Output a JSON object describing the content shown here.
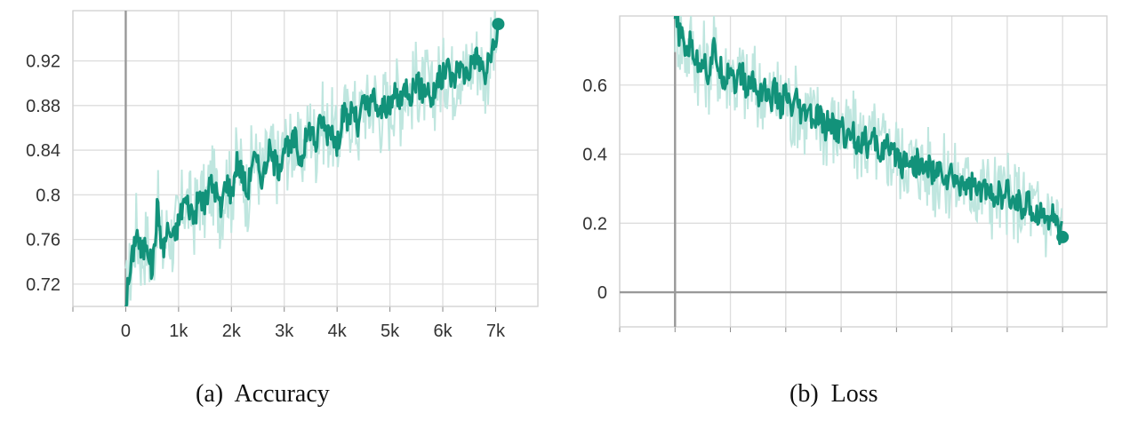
{
  "chart_data": [
    {
      "type": "line",
      "caption": "(a)  Accuracy",
      "xlim": [
        -1000,
        7800
      ],
      "ylim": [
        0.7,
        0.965
      ],
      "xticks": [
        0,
        1000,
        2000,
        3000,
        4000,
        5000,
        6000,
        7000
      ],
      "xtick_labels": [
        "0",
        "1k",
        "2k",
        "3k",
        "4k",
        "5k",
        "6k",
        "7k"
      ],
      "yticks": [
        0.72,
        0.76,
        0.8,
        0.84,
        0.88,
        0.92
      ],
      "ytick_labels": [
        "0.72",
        "0.76",
        "0.8",
        "0.84",
        "0.88",
        "0.92"
      ],
      "grid": true,
      "colors": {
        "smoothed": "#12927a",
        "raw": "#bfe6df",
        "axis": "#999999",
        "grid": "#dddddd"
      },
      "series": [
        {
          "x": [
            0,
            100,
            200,
            300,
            400,
            500,
            600,
            700,
            800,
            900,
            1000,
            1100,
            1200,
            1300,
            1400,
            1500,
            1600,
            1700,
            1800,
            1900,
            2000,
            2100,
            2200,
            2300,
            2400,
            2500,
            2600,
            2700,
            2800,
            2900,
            3000,
            3100,
            3200,
            3300,
            3400,
            3500,
            3600,
            3700,
            3800,
            3900,
            4000,
            4100,
            4200,
            4300,
            4400,
            4500,
            4600,
            4700,
            4800,
            4900,
            5000,
            5100,
            5200,
            5300,
            5400,
            5500,
            5600,
            5700,
            5800,
            5900,
            6000,
            6100,
            6200,
            6300,
            6400,
            6500,
            6600,
            6700,
            6800,
            6900,
            7000,
            7050
          ],
          "values": [
            0.705,
            0.735,
            0.77,
            0.745,
            0.76,
            0.73,
            0.79,
            0.75,
            0.77,
            0.76,
            0.775,
            0.795,
            0.79,
            0.78,
            0.8,
            0.79,
            0.81,
            0.805,
            0.785,
            0.815,
            0.8,
            0.83,
            0.82,
            0.8,
            0.835,
            0.825,
            0.815,
            0.84,
            0.83,
            0.825,
            0.845,
            0.838,
            0.852,
            0.83,
            0.848,
            0.862,
            0.845,
            0.87,
            0.855,
            0.862,
            0.84,
            0.875,
            0.865,
            0.88,
            0.857,
            0.885,
            0.874,
            0.89,
            0.868,
            0.884,
            0.872,
            0.895,
            0.88,
            0.9,
            0.89,
            0.905,
            0.892,
            0.898,
            0.884,
            0.903,
            0.905,
            0.915,
            0.9,
            0.918,
            0.908,
            0.912,
            0.925,
            0.92,
            0.905,
            0.925,
            0.93,
            0.953
          ]
        }
      ]
    },
    {
      "type": "line",
      "caption": "(b)  Loss",
      "xlim": [
        -1000,
        7800
      ],
      "ylim": [
        -0.1,
        0.8
      ],
      "xticks": [
        0,
        1000,
        2000,
        3000,
        4000,
        5000,
        6000,
        7000
      ],
      "yticks": [
        0,
        0.2,
        0.4,
        0.6
      ],
      "ytick_labels": [
        "0",
        "0.2",
        "0.4",
        "0.6"
      ],
      "grid": true,
      "colors": {
        "smoothed": "#12927a",
        "raw": "#bfe6df",
        "axis": "#999999",
        "grid": "#dddddd"
      },
      "series": [
        {
          "x": [
            0,
            100,
            200,
            300,
            400,
            500,
            600,
            700,
            800,
            900,
            1000,
            1100,
            1200,
            1300,
            1400,
            1500,
            1600,
            1700,
            1800,
            1900,
            2000,
            2100,
            2200,
            2300,
            2400,
            2500,
            2600,
            2700,
            2800,
            2900,
            3000,
            3100,
            3200,
            3300,
            3400,
            3500,
            3600,
            3700,
            3800,
            3900,
            4000,
            4100,
            4200,
            4300,
            4400,
            4500,
            4600,
            4700,
            4800,
            4900,
            5000,
            5100,
            5200,
            5300,
            5400,
            5500,
            5600,
            5700,
            5800,
            5900,
            6000,
            6100,
            6200,
            6300,
            6400,
            6500,
            6600,
            6700,
            6800,
            6900,
            7000
          ],
          "values": [
            0.79,
            0.74,
            0.7,
            0.72,
            0.66,
            0.68,
            0.63,
            0.7,
            0.65,
            0.62,
            0.66,
            0.6,
            0.64,
            0.58,
            0.62,
            0.57,
            0.6,
            0.55,
            0.58,
            0.54,
            0.57,
            0.52,
            0.55,
            0.5,
            0.53,
            0.49,
            0.51,
            0.47,
            0.5,
            0.46,
            0.48,
            0.44,
            0.47,
            0.43,
            0.45,
            0.42,
            0.44,
            0.4,
            0.43,
            0.39,
            0.41,
            0.37,
            0.4,
            0.36,
            0.38,
            0.35,
            0.37,
            0.33,
            0.36,
            0.32,
            0.34,
            0.31,
            0.33,
            0.3,
            0.32,
            0.28,
            0.31,
            0.27,
            0.3,
            0.26,
            0.29,
            0.25,
            0.27,
            0.24,
            0.26,
            0.22,
            0.24,
            0.21,
            0.23,
            0.2,
            0.16
          ]
        }
      ]
    }
  ]
}
